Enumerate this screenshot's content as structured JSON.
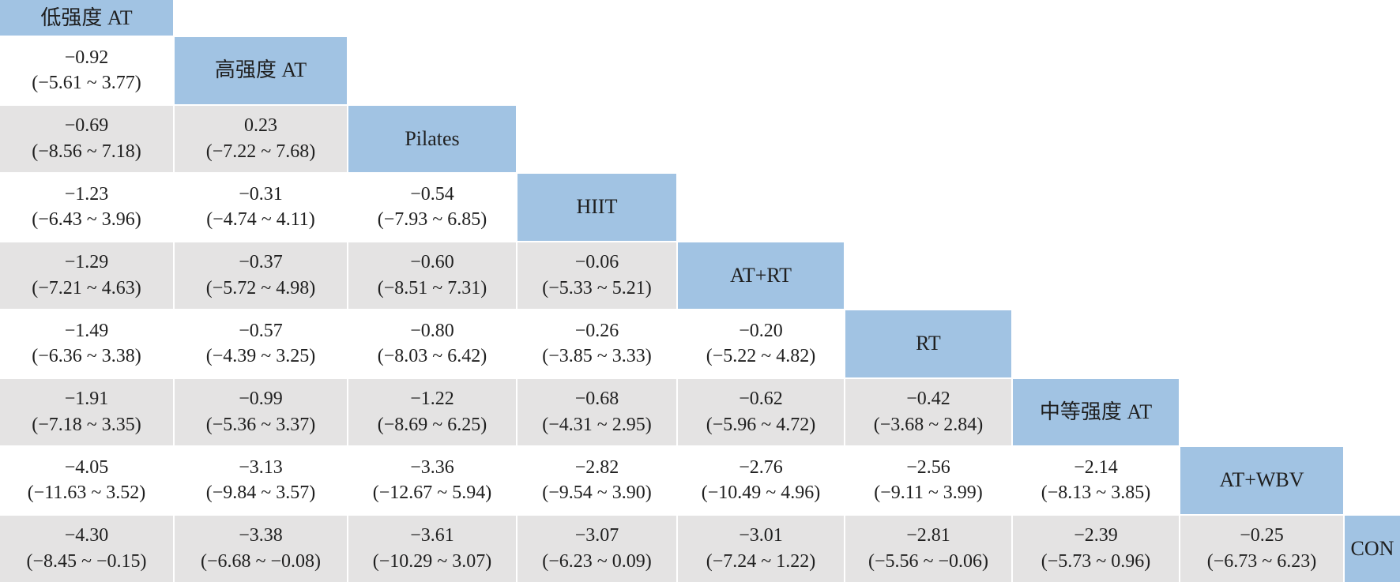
{
  "colors": {
    "diagonal_cell_bg": "#A1C3E3",
    "stripe_row_bg": "#E4E3E3",
    "background": "#FFFFFF",
    "text": "#1F1F1F"
  },
  "chart_data": {
    "type": "table",
    "layout": "lower-triangle-league-table",
    "treatments": [
      "低强度 AT",
      "高强度 AT",
      "Pilates",
      "HIIT",
      "AT+RT",
      "RT",
      "中等强度 AT",
      "AT+WBV",
      "CON"
    ],
    "lower_triangle": [
      [],
      [
        {
          "estimate": "−0.92",
          "ci": "(−5.61 ~ 3.77)"
        }
      ],
      [
        {
          "estimate": "−0.69",
          "ci": "(−8.56 ~ 7.18)"
        },
        {
          "estimate": "0.23",
          "ci": "(−7.22 ~ 7.68)"
        }
      ],
      [
        {
          "estimate": "−1.23",
          "ci": "(−6.43 ~ 3.96)"
        },
        {
          "estimate": "−0.31",
          "ci": "(−4.74 ~ 4.11)"
        },
        {
          "estimate": "−0.54",
          "ci": "(−7.93 ~ 6.85)"
        }
      ],
      [
        {
          "estimate": "−1.29",
          "ci": "(−7.21 ~ 4.63)"
        },
        {
          "estimate": "−0.37",
          "ci": "(−5.72 ~ 4.98)"
        },
        {
          "estimate": "−0.60",
          "ci": "(−8.51 ~ 7.31)"
        },
        {
          "estimate": "−0.06",
          "ci": "(−5.33 ~ 5.21)"
        }
      ],
      [
        {
          "estimate": "−1.49",
          "ci": "(−6.36 ~ 3.38)"
        },
        {
          "estimate": "−0.57",
          "ci": "(−4.39 ~ 3.25)"
        },
        {
          "estimate": "−0.80",
          "ci": "(−8.03 ~ 6.42)"
        },
        {
          "estimate": "−0.26",
          "ci": "(−3.85 ~ 3.33)"
        },
        {
          "estimate": "−0.20",
          "ci": "(−5.22 ~ 4.82)"
        }
      ],
      [
        {
          "estimate": "−1.91",
          "ci": "(−7.18 ~ 3.35)"
        },
        {
          "estimate": "−0.99",
          "ci": "(−5.36 ~ 3.37)"
        },
        {
          "estimate": "−1.22",
          "ci": "(−8.69 ~ 6.25)"
        },
        {
          "estimate": "−0.68",
          "ci": "(−4.31 ~ 2.95)"
        },
        {
          "estimate": "−0.62",
          "ci": "(−5.96 ~ 4.72)"
        },
        {
          "estimate": "−0.42",
          "ci": "(−3.68 ~ 2.84)"
        }
      ],
      [
        {
          "estimate": "−4.05",
          "ci": "(−11.63 ~ 3.52)"
        },
        {
          "estimate": "−3.13",
          "ci": "(−9.84 ~ 3.57)"
        },
        {
          "estimate": "−3.36",
          "ci": "(−12.67 ~ 5.94)"
        },
        {
          "estimate": "−2.82",
          "ci": "(−9.54 ~ 3.90)"
        },
        {
          "estimate": "−2.76",
          "ci": "(−10.49 ~ 4.96)"
        },
        {
          "estimate": "−2.56",
          "ci": "(−9.11 ~ 3.99)"
        },
        {
          "estimate": "−2.14",
          "ci": "(−8.13 ~ 3.85)"
        }
      ],
      [
        {
          "estimate": "−4.30",
          "ci": "(−8.45 ~ −0.15)"
        },
        {
          "estimate": "−3.38",
          "ci": "(−6.68 ~ −0.08)"
        },
        {
          "estimate": "−3.61",
          "ci": "(−10.29 ~ 3.07)"
        },
        {
          "estimate": "−3.07",
          "ci": "(−6.23 ~ 0.09)"
        },
        {
          "estimate": "−3.01",
          "ci": "(−7.24 ~ 1.22)"
        },
        {
          "estimate": "−2.81",
          "ci": "(−5.56 ~ −0.06)"
        },
        {
          "estimate": "−2.39",
          "ci": "(−5.73 ~ 0.96)"
        },
        {
          "estimate": "−0.25",
          "ci": "(−6.73 ~ 6.23)"
        }
      ]
    ]
  }
}
